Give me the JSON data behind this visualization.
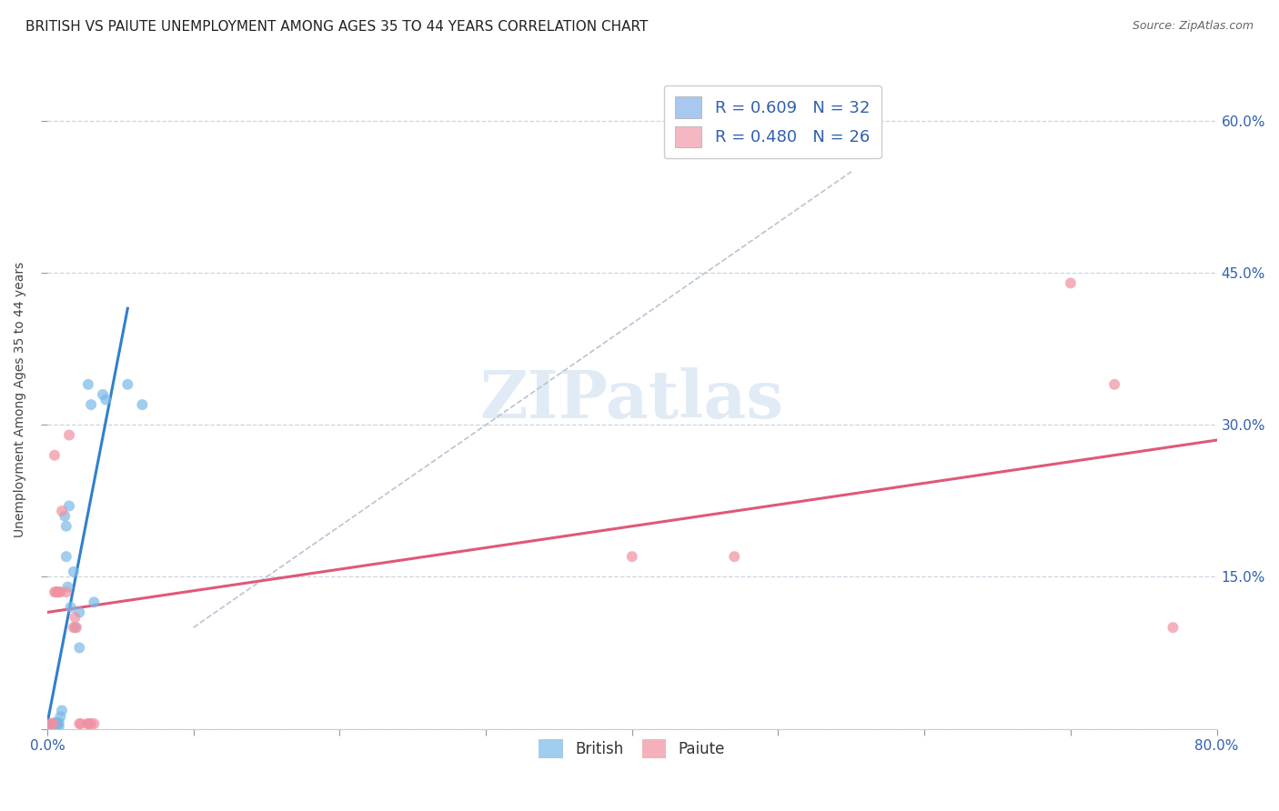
{
  "title": "BRITISH VS PAIUTE UNEMPLOYMENT AMONG AGES 35 TO 44 YEARS CORRELATION CHART",
  "source": "Source: ZipAtlas.com",
  "ylabel": "Unemployment Among Ages 35 to 44 years",
  "xlim": [
    0.0,
    0.8
  ],
  "ylim": [
    0.0,
    0.65
  ],
  "xticks": [
    0.0,
    0.1,
    0.2,
    0.3,
    0.4,
    0.5,
    0.6,
    0.7,
    0.8
  ],
  "xticklabels": [
    "0.0%",
    "",
    "",
    "",
    "",
    "",
    "",
    "",
    "80.0%"
  ],
  "ytick_positions": [
    0.0,
    0.15,
    0.3,
    0.45,
    0.6
  ],
  "yticklabels_right": [
    "",
    "15.0%",
    "30.0%",
    "45.0%",
    "60.0%"
  ],
  "legend_entries": [
    {
      "label": "R = 0.609   N = 32",
      "color": "#a8c8f0"
    },
    {
      "label": "R = 0.480   N = 26",
      "color": "#f4b8c4"
    }
  ],
  "british_color": "#7ab8e8",
  "paiute_color": "#f090a0",
  "british_points": [
    [
      0.002,
      0.002
    ],
    [
      0.003,
      0.004
    ],
    [
      0.004,
      0.002
    ],
    [
      0.004,
      0.004
    ],
    [
      0.005,
      0.002
    ],
    [
      0.005,
      0.004
    ],
    [
      0.005,
      0.006
    ],
    [
      0.006,
      0.002
    ],
    [
      0.006,
      0.004
    ],
    [
      0.007,
      0.004
    ],
    [
      0.007,
      0.006
    ],
    [
      0.008,
      0.002
    ],
    [
      0.008,
      0.006
    ],
    [
      0.009,
      0.012
    ],
    [
      0.01,
      0.018
    ],
    [
      0.012,
      0.21
    ],
    [
      0.013,
      0.2
    ],
    [
      0.013,
      0.17
    ],
    [
      0.014,
      0.14
    ],
    [
      0.015,
      0.22
    ],
    [
      0.016,
      0.12
    ],
    [
      0.018,
      0.155
    ],
    [
      0.019,
      0.1
    ],
    [
      0.022,
      0.08
    ],
    [
      0.022,
      0.115
    ],
    [
      0.028,
      0.34
    ],
    [
      0.03,
      0.32
    ],
    [
      0.032,
      0.125
    ],
    [
      0.038,
      0.33
    ],
    [
      0.04,
      0.325
    ],
    [
      0.055,
      0.34
    ],
    [
      0.065,
      0.32
    ]
  ],
  "paiute_points": [
    [
      0.002,
      0.005
    ],
    [
      0.003,
      0.005
    ],
    [
      0.004,
      0.005
    ],
    [
      0.005,
      0.135
    ],
    [
      0.006,
      0.135
    ],
    [
      0.007,
      0.135
    ],
    [
      0.008,
      0.135
    ],
    [
      0.009,
      0.135
    ],
    [
      0.01,
      0.215
    ],
    [
      0.013,
      0.135
    ],
    [
      0.015,
      0.29
    ],
    [
      0.018,
      0.1
    ],
    [
      0.019,
      0.11
    ],
    [
      0.02,
      0.1
    ],
    [
      0.022,
      0.005
    ],
    [
      0.023,
      0.005
    ],
    [
      0.028,
      0.005
    ],
    [
      0.028,
      0.005
    ],
    [
      0.03,
      0.005
    ],
    [
      0.032,
      0.005
    ],
    [
      0.005,
      0.27
    ],
    [
      0.4,
      0.17
    ],
    [
      0.47,
      0.17
    ],
    [
      0.7,
      0.44
    ],
    [
      0.73,
      0.34
    ],
    [
      0.77,
      0.1
    ]
  ],
  "british_line_x": [
    0.0,
    0.055
  ],
  "british_line_y": [
    0.005,
    0.415
  ],
  "paiute_line_x": [
    0.0,
    0.8
  ],
  "paiute_line_y": [
    0.115,
    0.285
  ],
  "diag_line_x": [
    0.1,
    0.55
  ],
  "diag_line_y": [
    0.1,
    0.55
  ],
  "background_color": "#ffffff",
  "grid_color": "#ccd4e0",
  "title_fontsize": 11,
  "axis_label_fontsize": 10,
  "tick_fontsize": 11,
  "marker_size": 75
}
